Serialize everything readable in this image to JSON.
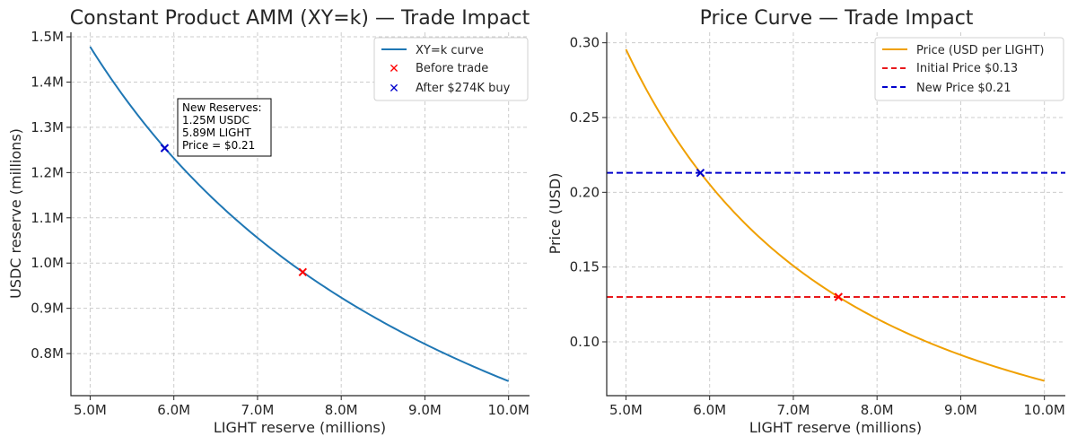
{
  "chart_data": [
    {
      "type": "line",
      "title": "Constant Product AMM (XY=k) — Trade Impact",
      "xlabel": "LIGHT reserve (millions)",
      "ylabel": "USDC reserve (millions)",
      "xlim": [
        4.77,
        10.25
      ],
      "ylim": [
        0.707,
        1.51
      ],
      "x_ticks": [
        5,
        6,
        7,
        8,
        9,
        10
      ],
      "x_tick_labels": [
        "5.0M",
        "6.0M",
        "7.0M",
        "8.0M",
        "9.0M",
        "10.0M"
      ],
      "y_ticks": [
        0.8,
        0.9,
        1.0,
        1.1,
        1.2,
        1.3,
        1.4,
        1.5
      ],
      "y_tick_labels": [
        "0.8M",
        "0.9M",
        "1.0M",
        "1.1M",
        "1.2M",
        "1.3M",
        "1.4M",
        "1.5M"
      ],
      "grid": true,
      "legend_position": "top-right",
      "series": [
        {
          "name": "XY=k curve",
          "kind": "curve",
          "k": 7.39,
          "x_range": [
            5.0,
            10.0
          ],
          "color": "#1f77b4"
        }
      ],
      "points": [
        {
          "name": "Before trade",
          "x": 7.54,
          "y": 0.98,
          "color": "#ff0000"
        },
        {
          "name": "After $274K buy",
          "x": 5.89,
          "y": 1.254,
          "color": "#0000cc"
        }
      ],
      "annotation": {
        "lines": [
          "New Reserves:",
          "1.25M USDC",
          "5.89M LIGHT",
          "Price = $0.21"
        ]
      }
    },
    {
      "type": "line",
      "title": "Price Curve — Trade Impact",
      "xlabel": "LIGHT reserve (millions)",
      "ylabel": "Price (USD)",
      "xlim": [
        4.77,
        10.25
      ],
      "ylim": [
        0.064,
        0.307
      ],
      "x_ticks": [
        5,
        6,
        7,
        8,
        9,
        10
      ],
      "x_tick_labels": [
        "5.0M",
        "6.0M",
        "7.0M",
        "8.0M",
        "9.0M",
        "10.0M"
      ],
      "y_ticks": [
        0.1,
        0.15,
        0.2,
        0.25,
        0.3
      ],
      "y_tick_labels": [
        "0.10",
        "0.15",
        "0.20",
        "0.25",
        "0.30"
      ],
      "grid": true,
      "legend_position": "top-right",
      "series": [
        {
          "name": "Price (USD per LIGHT)",
          "kind": "price-curve",
          "k": 7.39,
          "x_range": [
            5.0,
            10.0
          ],
          "color": "#f0a000"
        }
      ],
      "hlines": [
        {
          "name": "Initial Price $0.13",
          "y": 0.13,
          "color": "#e8191c"
        },
        {
          "name": "New Price $0.21",
          "y": 0.213,
          "color": "#0000cc"
        }
      ],
      "points": [
        {
          "name": "initial",
          "x": 7.54,
          "y": 0.13,
          "color": "#ff0000"
        },
        {
          "name": "new",
          "x": 5.89,
          "y": 0.213,
          "color": "#0000cc"
        }
      ]
    }
  ]
}
